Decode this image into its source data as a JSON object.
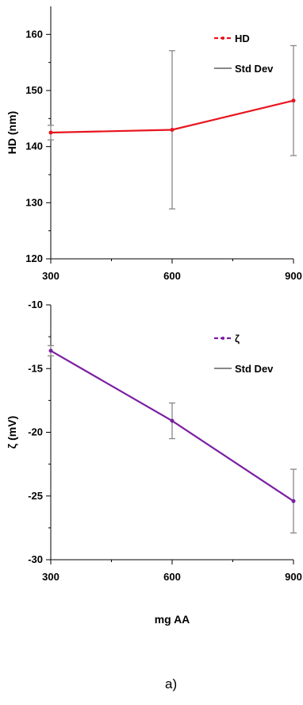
{
  "chart_data": [
    {
      "type": "line",
      "ylabel": "HD (nm)",
      "xlabel": "",
      "x": [
        300,
        600,
        900
      ],
      "xticks": [
        "300",
        "600",
        "900"
      ],
      "ylim": [
        120,
        165
      ],
      "yticks": [
        "120",
        "130",
        "140",
        "150",
        "160"
      ],
      "series": [
        {
          "name": "HD",
          "values": [
            142.5,
            143.0,
            148.2
          ],
          "color": "#e8141e"
        }
      ],
      "error_bars": {
        "name": "Std Dev",
        "err": [
          1.3,
          14.1,
          9.8
        ],
        "color": "#888888"
      },
      "legend": "top-right",
      "grid": false
    },
    {
      "type": "line",
      "ylabel": "ζ (mV)",
      "xlabel": "mg AA",
      "x": [
        300,
        600,
        900
      ],
      "xticks": [
        "300",
        "600",
        "900"
      ],
      "ylim": [
        -30,
        -10
      ],
      "yticks": [
        "-10",
        "-15",
        "-20",
        "-25",
        "-30"
      ],
      "series": [
        {
          "name": "ζ",
          "values": [
            -13.6,
            -19.1,
            -25.4
          ],
          "color": "#7b1fa2"
        }
      ],
      "error_bars": {
        "name": "Std Dev",
        "err": [
          0.4,
          1.4,
          2.5
        ],
        "color": "#888888"
      },
      "legend": "top-right",
      "grid": false
    }
  ],
  "panel_label": "a)"
}
